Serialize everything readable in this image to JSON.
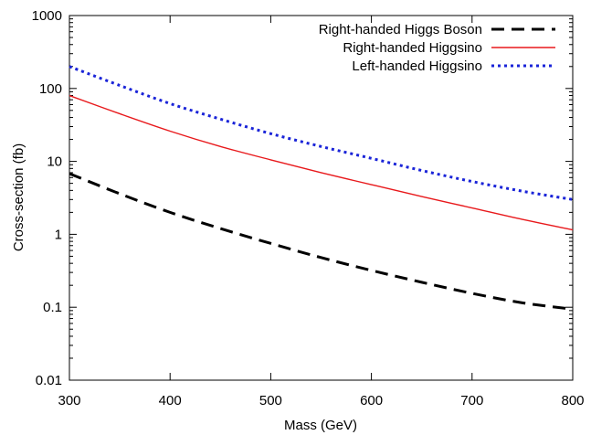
{
  "chart_data": {
    "type": "line",
    "title": "",
    "xlabel": "Mass (GeV)",
    "ylabel": "Cross-section (fb)",
    "xlim": [
      300,
      800
    ],
    "ylim": [
      0.01,
      1000
    ],
    "yscale": "log",
    "grid": false,
    "legend_position": "top-right",
    "x_ticks": [
      {
        "value": 300,
        "label": "300"
      },
      {
        "value": 400,
        "label": "400"
      },
      {
        "value": 500,
        "label": "500"
      },
      {
        "value": 600,
        "label": "600"
      },
      {
        "value": 700,
        "label": "700"
      },
      {
        "value": 800,
        "label": "800"
      }
    ],
    "y_ticks": [
      {
        "value": 0.01,
        "label": "0.01"
      },
      {
        "value": 0.1,
        "label": "0.1"
      },
      {
        "value": 1,
        "label": "1"
      },
      {
        "value": 10,
        "label": "10"
      },
      {
        "value": 100,
        "label": "100"
      },
      {
        "value": 1000,
        "label": "1000"
      }
    ],
    "series": [
      {
        "name": "Right-handed Higgs Boson",
        "color": "#000000",
        "style": "dashed",
        "x": [
          300,
          350,
          400,
          450,
          500,
          550,
          600,
          650,
          700,
          750,
          800
        ],
        "y": [
          6.8,
          3.6,
          2.0,
          1.2,
          0.75,
          0.48,
          0.32,
          0.22,
          0.155,
          0.115,
          0.094
        ]
      },
      {
        "name": "Right-handed Higgsino",
        "color": "#e8191c",
        "style": "solid",
        "x": [
          300,
          350,
          400,
          450,
          500,
          550,
          600,
          650,
          700,
          750,
          800
        ],
        "y": [
          80,
          45,
          26,
          16,
          10.5,
          7.0,
          4.8,
          3.3,
          2.3,
          1.6,
          1.15
        ]
      },
      {
        "name": "Left-handed Higgsino",
        "color": "#1a24d8",
        "style": "dotted",
        "x": [
          300,
          350,
          400,
          450,
          500,
          550,
          600,
          650,
          700,
          750,
          800
        ],
        "y": [
          200,
          110,
          62,
          38,
          24,
          16,
          11,
          7.5,
          5.3,
          3.9,
          3.0
        ]
      }
    ]
  }
}
